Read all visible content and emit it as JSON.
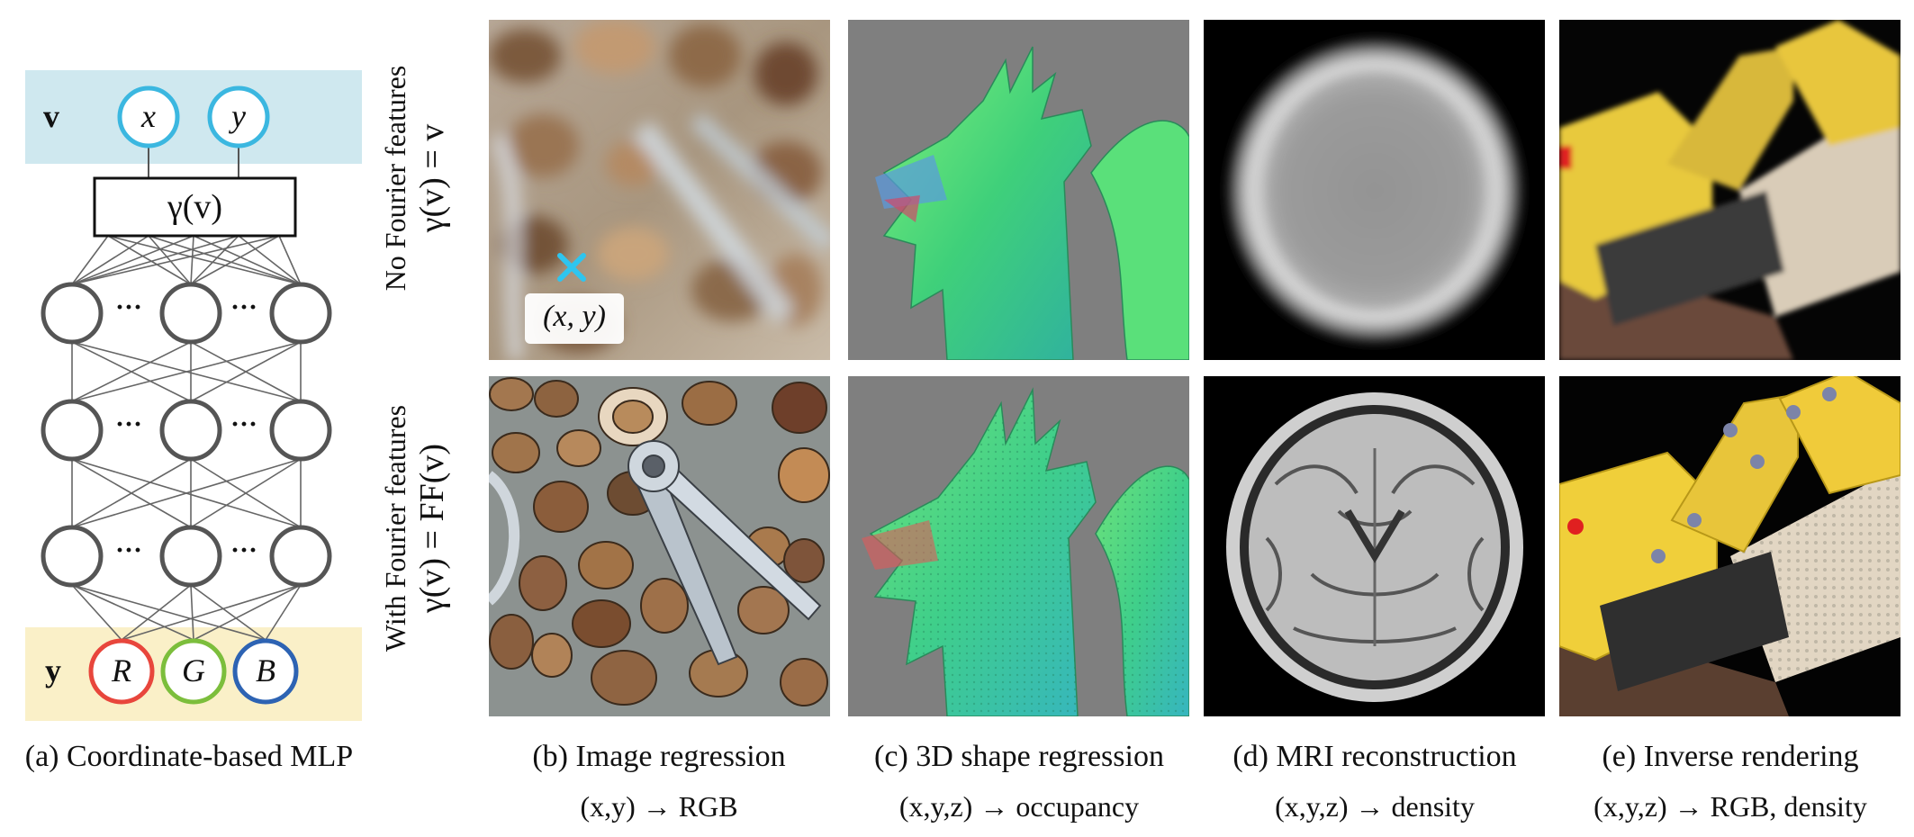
{
  "mlp": {
    "input_label": "v",
    "input_nodes": [
      "x",
      "y"
    ],
    "encoding_label": "γ(v)",
    "dots": "···",
    "output_label": "y",
    "output_nodes": [
      "R",
      "G",
      "B"
    ],
    "colors": {
      "input_band": "#cfe8ef",
      "output_band": "#faf0c8",
      "input_node": "#3bb7e0",
      "r_node": "#e8463c",
      "g_node": "#7cbe3c",
      "b_node": "#2d63b3",
      "hidden_node": "#555555"
    }
  },
  "row_labels": {
    "top_line1": "No Fourier features",
    "top_line2": "γ(v) = v",
    "bottom_line1": "With Fourier features",
    "bottom_line2": "γ(v) = FF(v)"
  },
  "image_annotation": "(x, y)",
  "captions": [
    {
      "label": "(a) Coordinate-based MLP",
      "mapping": ""
    },
    {
      "label": "(b) Image regression",
      "mapping": "(x,y) → RGB"
    },
    {
      "label": "(c) 3D shape regression",
      "mapping": "(x,y,z) → occupancy"
    },
    {
      "label": "(d) MRI reconstruction",
      "mapping": "(x,y,z) → density"
    },
    {
      "label": "(e) Inverse rendering",
      "mapping": "(x,y,z) → RGB, density"
    }
  ]
}
